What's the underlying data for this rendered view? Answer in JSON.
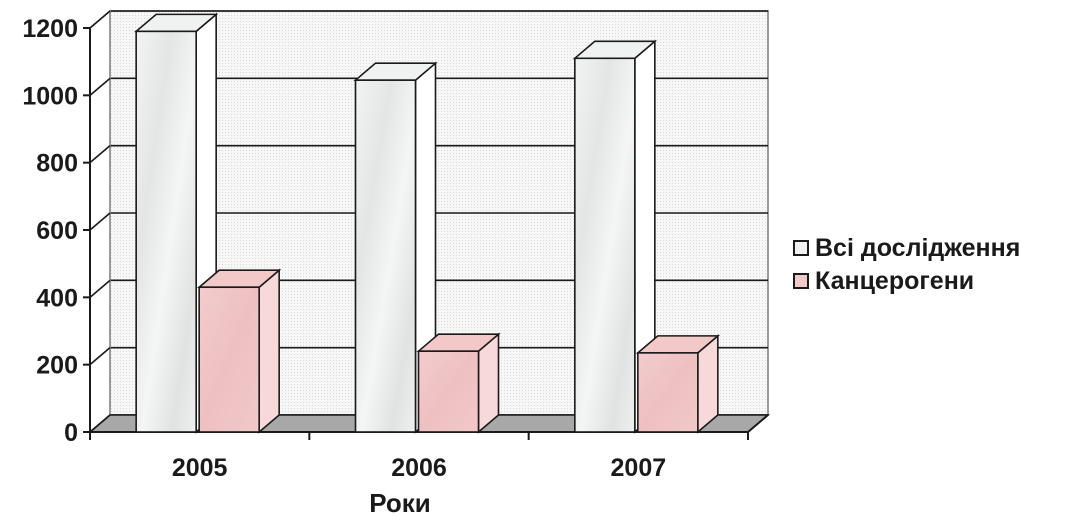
{
  "chart_data": {
    "type": "bar",
    "categories": [
      "2005",
      "2006",
      "2007"
    ],
    "series": [
      {
        "name": "Всі дослідження",
        "values": [
          1190,
          1045,
          1110
        ]
      },
      {
        "name": "Канцерогени",
        "values": [
          430,
          240,
          235
        ]
      }
    ],
    "yticks": [
      "0",
      "200",
      "400",
      "600",
      "800",
      "1000",
      "1200"
    ],
    "ylim": [
      0,
      1200
    ],
    "xlabel": "Роки",
    "ylabel": "",
    "grid": true,
    "legend_position": "right",
    "colors": {
      "series0_fill": "#f0f1f1",
      "series0_side": "#ffffff",
      "series1_fill": "#f2c8c9",
      "series1_side": "#f7d9da",
      "floor": "#a8a8a8",
      "wall": "#f4f4f4",
      "grid": "#1a1a1a"
    }
  }
}
